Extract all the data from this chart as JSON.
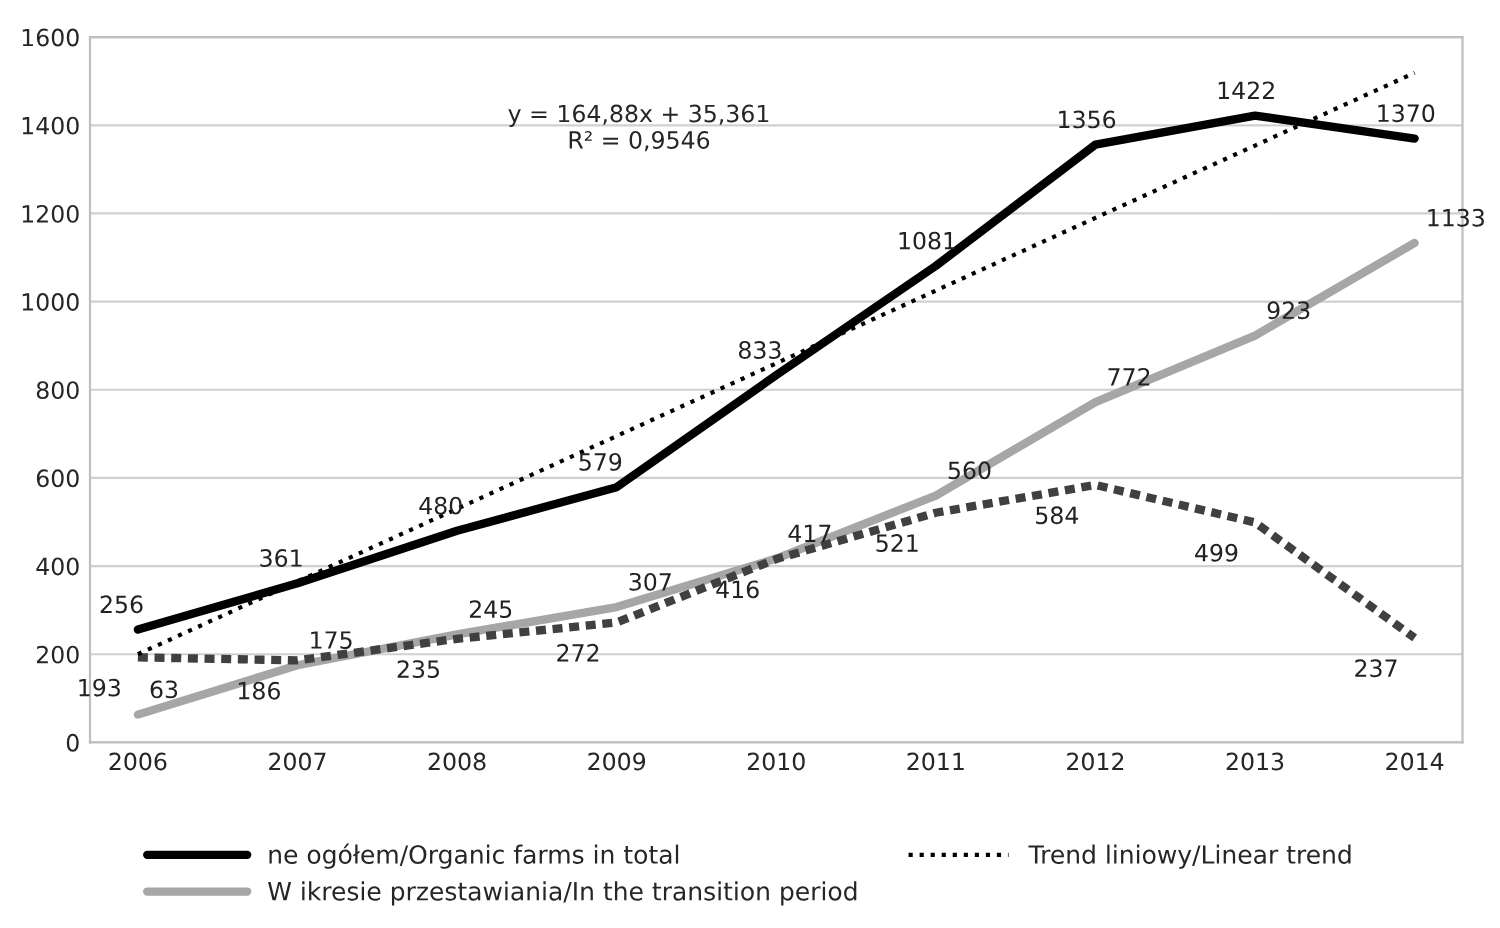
{
  "chart_data": {
    "type": "line",
    "categories": [
      "2006",
      "2007",
      "2008",
      "2009",
      "2010",
      "2011",
      "2012",
      "2013",
      "2014"
    ],
    "series": [
      {
        "name": "ne ogółem/Organic farms in total",
        "color": "#000000",
        "line_style": "solid",
        "values": [
          256,
          361,
          480,
          579,
          833,
          1081,
          1356,
          1422,
          1370
        ]
      },
      {
        "name": "W ikresie przestawiania/In the transition period",
        "color": "#a6a6a6",
        "line_style": "solid",
        "values": [
          63,
          175,
          245,
          307,
          417,
          560,
          772,
          923,
          1133
        ]
      },
      {
        "color": "#404040",
        "line_style": "dashed",
        "values": [
          193,
          186,
          235,
          272,
          416,
          521,
          584,
          499,
          237
        ]
      },
      {
        "name": "Trend liniowy/Linear trend",
        "color": "#000000",
        "line_style": "dotted",
        "values": [
          200,
          365,
          530,
          695,
          860,
          1025,
          1190,
          1354,
          1519
        ],
        "value_labels": [
          null,
          null,
          null,
          null,
          null,
          null,
          null,
          null,
          null
        ]
      }
    ],
    "data_labels": true,
    "ylim": [
      0,
      1600
    ],
    "yticks": [
      0,
      200,
      400,
      600,
      800,
      1000,
      1200,
      1400,
      1600
    ],
    "grid": "y",
    "legend": "bottom",
    "annotations": [
      "y = 164,88x + 35,361\nR² = 0,9546"
    ]
  }
}
